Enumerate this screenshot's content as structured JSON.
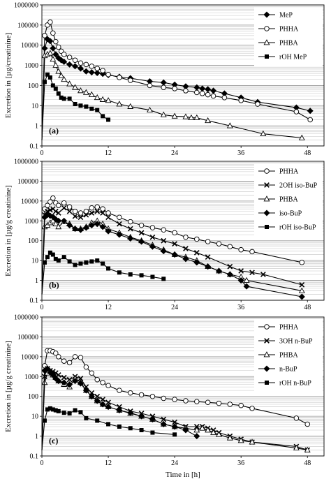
{
  "figure": {
    "xlabel": "Time in [h]"
  },
  "chart_data": [
    {
      "type": "line",
      "panel_label": "(a)",
      "ylabel": "Excretion in [µg/creatinine]",
      "yscale": "log",
      "ylim": [
        0.1,
        1000000
      ],
      "xlim": [
        0,
        51
      ],
      "xticks": [
        0,
        12,
        24,
        36,
        48
      ],
      "ytick_labels": [
        "0.1",
        "1",
        "10",
        "100",
        "1000",
        "10000",
        "100000",
        "1000000"
      ],
      "grid": true,
      "legend": "top-right",
      "series": [
        {
          "name": "MeP",
          "marker": "diamond",
          "x": [
            0,
            0.5,
            1,
            1.5,
            2,
            2.5,
            3,
            3.5,
            4,
            5,
            6,
            7,
            8,
            9,
            10,
            11,
            12,
            14,
            16,
            19.5,
            22,
            24,
            26,
            28,
            29,
            30,
            31,
            33,
            36,
            39,
            46,
            48.5
          ],
          "y": [
            0.2,
            7000,
            20000,
            16000,
            7000,
            3500,
            2300,
            1800,
            1500,
            1100,
            900,
            700,
            500,
            450,
            420,
            380,
            330,
            270,
            230,
            160,
            140,
            110,
            90,
            80,
            70,
            65,
            55,
            40,
            25,
            15,
            8,
            5.5
          ]
        },
        {
          "name": "PHHA",
          "marker": "circle-open",
          "x": [
            0,
            0.5,
            1,
            1.5,
            2,
            2.5,
            3,
            3.5,
            4,
            5,
            6,
            7,
            8,
            9,
            10,
            11,
            12,
            14,
            16,
            19.5,
            22,
            24,
            26,
            28,
            29,
            30,
            31,
            33,
            36,
            39,
            46,
            48.5
          ],
          "y": [
            0.2,
            30000,
            100000,
            140000,
            40000,
            15000,
            8000,
            5000,
            3500,
            2500,
            1800,
            1300,
            1100,
            900,
            700,
            550,
            350,
            250,
            180,
            100,
            80,
            70,
            55,
            45,
            40,
            35,
            30,
            25,
            18,
            12,
            5,
            2
          ]
        },
        {
          "name": "PHBA",
          "marker": "triangle-open",
          "x": [
            0,
            0.5,
            1,
            1.5,
            2,
            2.5,
            3,
            3.5,
            4,
            5,
            6,
            7,
            8,
            9,
            10,
            11,
            12,
            14,
            16,
            19.5,
            22,
            24,
            26,
            27,
            28,
            30,
            34,
            40,
            47
          ],
          "y": [
            0.2,
            3000,
            3500,
            4000,
            2000,
            1000,
            500,
            300,
            200,
            120,
            80,
            55,
            45,
            35,
            25,
            20,
            18,
            12,
            9,
            6,
            3.5,
            3,
            2.8,
            2.5,
            2.5,
            1.8,
            1,
            0.4,
            0.25
          ]
        },
        {
          "name": "rOH MeP",
          "marker": "square",
          "x": [
            0,
            0.5,
            1,
            1.5,
            2,
            2.5,
            3,
            3.5,
            4,
            5,
            6,
            7,
            8,
            9,
            10,
            11,
            12
          ],
          "y": [
            0.2,
            150,
            350,
            250,
            100,
            70,
            40,
            25,
            22,
            22,
            12,
            10,
            9,
            7,
            6,
            3,
            2
          ]
        }
      ]
    },
    {
      "type": "line",
      "panel_label": "(b)",
      "ylabel": "Excretion in [µg/g creatinine]",
      "yscale": "log",
      "ylim": [
        0.1,
        1000000
      ],
      "xlim": [
        0,
        51
      ],
      "xticks": [
        0,
        12,
        24,
        36,
        48
      ],
      "ytick_labels": [
        "0.1",
        "1",
        "10",
        "100",
        "1000",
        "10000",
        "100000",
        "1000000"
      ],
      "grid": true,
      "legend": "top-right",
      "series": [
        {
          "name": "PHHA",
          "marker": "circle-open",
          "x": [
            0,
            0.5,
            1,
            1.5,
            2,
            2.5,
            3,
            4,
            5,
            6,
            7,
            8,
            9,
            10,
            11,
            12,
            14,
            16,
            18,
            20,
            22,
            24,
            26,
            28,
            30,
            32,
            34,
            36,
            38,
            47
          ],
          "y": [
            0.2,
            4000,
            6000,
            9000,
            14000,
            8000,
            6000,
            8000,
            5000,
            3000,
            2500,
            3000,
            4500,
            5000,
            4000,
            2500,
            1500,
            900,
            600,
            450,
            350,
            250,
            150,
            120,
            90,
            70,
            50,
            35,
            28,
            8
          ]
        },
        {
          "name": "2OH iso-BuP",
          "marker": "x",
          "x": [
            0,
            0.5,
            1,
            1.5,
            2,
            2.5,
            3,
            4,
            5,
            6,
            7,
            8,
            9,
            10,
            11,
            12,
            14,
            16,
            18,
            20,
            22,
            24,
            26,
            28,
            30,
            34,
            36,
            38,
            40,
            47
          ],
          "y": [
            0.2,
            2000,
            3000,
            3500,
            4000,
            3000,
            2500,
            4500,
            3000,
            1700,
            1500,
            2000,
            2500,
            3000,
            2500,
            1500,
            700,
            400,
            250,
            150,
            100,
            70,
            40,
            25,
            15,
            5,
            3,
            2.5,
            2,
            0.6
          ]
        },
        {
          "name": "PHBA",
          "marker": "triangle-open",
          "x": [
            0,
            0.5,
            1,
            1.5,
            2,
            2.5,
            3,
            4,
            5,
            6,
            7,
            8,
            9,
            10,
            11,
            12,
            14,
            16,
            18,
            20,
            22,
            24,
            26,
            28,
            30,
            32,
            34,
            36,
            37,
            47
          ],
          "y": [
            0.2,
            500,
            600,
            800,
            1000,
            700,
            500,
            900,
            700,
            400,
            400,
            500,
            800,
            1000,
            700,
            400,
            250,
            150,
            100,
            60,
            35,
            20,
            15,
            10,
            5,
            3,
            2,
            1.5,
            1,
            0.3
          ]
        },
        {
          "name": "iso-BuP",
          "marker": "diamond",
          "x": [
            0,
            0.5,
            1,
            1.5,
            2,
            2.5,
            3,
            4,
            5,
            6,
            7,
            8,
            9,
            10,
            11,
            12,
            14,
            16,
            18,
            20,
            22,
            24,
            26,
            28,
            30,
            32,
            34,
            36,
            37,
            47
          ],
          "y": [
            0.2,
            1500,
            2000,
            1800,
            1600,
            1200,
            1000,
            1000,
            600,
            400,
            350,
            450,
            600,
            700,
            500,
            300,
            200,
            130,
            90,
            50,
            30,
            20,
            12,
            8,
            5,
            3,
            2,
            1,
            0.5,
            0.15
          ]
        },
        {
          "name": "rOH iso-BuP",
          "marker": "square",
          "x": [
            0,
            0.5,
            1,
            1.5,
            2,
            2.5,
            3,
            4,
            5,
            6,
            7,
            8,
            9,
            10,
            11,
            12,
            14,
            16,
            18,
            20,
            22
          ],
          "y": [
            0.2,
            8,
            15,
            25,
            20,
            12,
            10,
            15,
            9,
            6,
            7,
            8,
            9,
            10,
            7,
            4,
            2.5,
            2,
            1.8,
            1.5,
            1.2
          ]
        }
      ]
    },
    {
      "type": "line",
      "panel_label": "(c)",
      "ylabel": "Excretion in [µg/g creatinine]",
      "yscale": "log",
      "ylim": [
        0.1,
        1000000
      ],
      "xlim": [
        0,
        51
      ],
      "xticks": [
        0,
        12,
        24,
        36,
        48
      ],
      "ytick_labels": [
        "0.1",
        "1",
        "10",
        "100",
        "1000",
        "10000",
        "100000",
        "1000000"
      ],
      "grid": true,
      "legend": "top-right",
      "series": [
        {
          "name": "PHHA",
          "marker": "circle-open",
          "x": [
            0,
            0.5,
            1,
            1.5,
            2,
            2.5,
            3,
            4,
            5,
            6,
            7,
            8,
            9,
            10,
            11,
            12,
            14,
            16,
            18,
            20,
            22,
            24,
            26,
            28,
            30,
            32,
            34,
            36,
            38,
            46,
            48
          ],
          "y": [
            0.2,
            3500,
            20000,
            20000,
            18000,
            15000,
            10000,
            6000,
            5000,
            10000,
            9000,
            3000,
            1500,
            700,
            500,
            350,
            200,
            150,
            120,
            100,
            80,
            70,
            60,
            55,
            50,
            45,
            40,
            35,
            25,
            8,
            4
          ]
        },
        {
          "name": "3OH n-BuP",
          "marker": "x",
          "x": [
            0,
            0.5,
            1,
            1.5,
            2,
            2.5,
            3,
            4,
            5,
            6,
            7,
            8,
            9,
            10,
            11,
            12,
            14,
            16,
            18,
            20,
            22,
            24,
            26,
            28,
            29,
            30,
            31,
            32,
            34,
            36,
            38,
            46,
            48
          ],
          "y": [
            0.2,
            1000,
            2500,
            2000,
            1800,
            1500,
            1200,
            900,
            700,
            1000,
            800,
            300,
            150,
            100,
            70,
            50,
            30,
            18,
            14,
            10,
            7,
            5,
            3,
            3,
            3,
            2.5,
            2,
            1.5,
            1,
            0.7,
            0.5,
            0.3,
            0.2
          ]
        },
        {
          "name": "PHBA",
          "marker": "triangle-open",
          "x": [
            0,
            0.5,
            1,
            1.5,
            2,
            2.5,
            3,
            4,
            5,
            6,
            7,
            8,
            9,
            10,
            11,
            12,
            14,
            16,
            18,
            20,
            22,
            24,
            26,
            28,
            29,
            30,
            31,
            32,
            34,
            36,
            38,
            46,
            48
          ],
          "y": [
            0.2,
            500,
            1500,
            1800,
            1200,
            900,
            600,
            400,
            300,
            800,
            500,
            200,
            100,
            60,
            40,
            30,
            20,
            14,
            10,
            7,
            4,
            3,
            2.5,
            2,
            2.5,
            2,
            1.5,
            1.2,
            0.8,
            0.6,
            0.5,
            0.25,
            0.2
          ]
        },
        {
          "name": "n-BuP",
          "marker": "diamond",
          "x": [
            0,
            0.5,
            1,
            1.5,
            2,
            2.5,
            3,
            4,
            5,
            6,
            7,
            8,
            9,
            10,
            11,
            12,
            14,
            16,
            18,
            20,
            22,
            24,
            26,
            28
          ],
          "y": [
            0.2,
            2000,
            2500,
            1600,
            1200,
            800,
            600,
            500,
            400,
            600,
            450,
            200,
            100,
            60,
            40,
            30,
            20,
            15,
            10,
            7,
            4,
            3,
            2,
            1
          ]
        },
        {
          "name": "rOH n-BuP",
          "marker": "square",
          "x": [
            0,
            0.5,
            1,
            1.5,
            2,
            2.5,
            3,
            4,
            5,
            6,
            7,
            8,
            10,
            12,
            14,
            16,
            18,
            20,
            24
          ],
          "y": [
            0.2,
            6,
            22,
            25,
            22,
            20,
            18,
            15,
            14,
            20,
            16,
            8,
            6,
            4,
            3,
            2.5,
            2,
            1.5,
            1.2
          ]
        }
      ]
    }
  ]
}
